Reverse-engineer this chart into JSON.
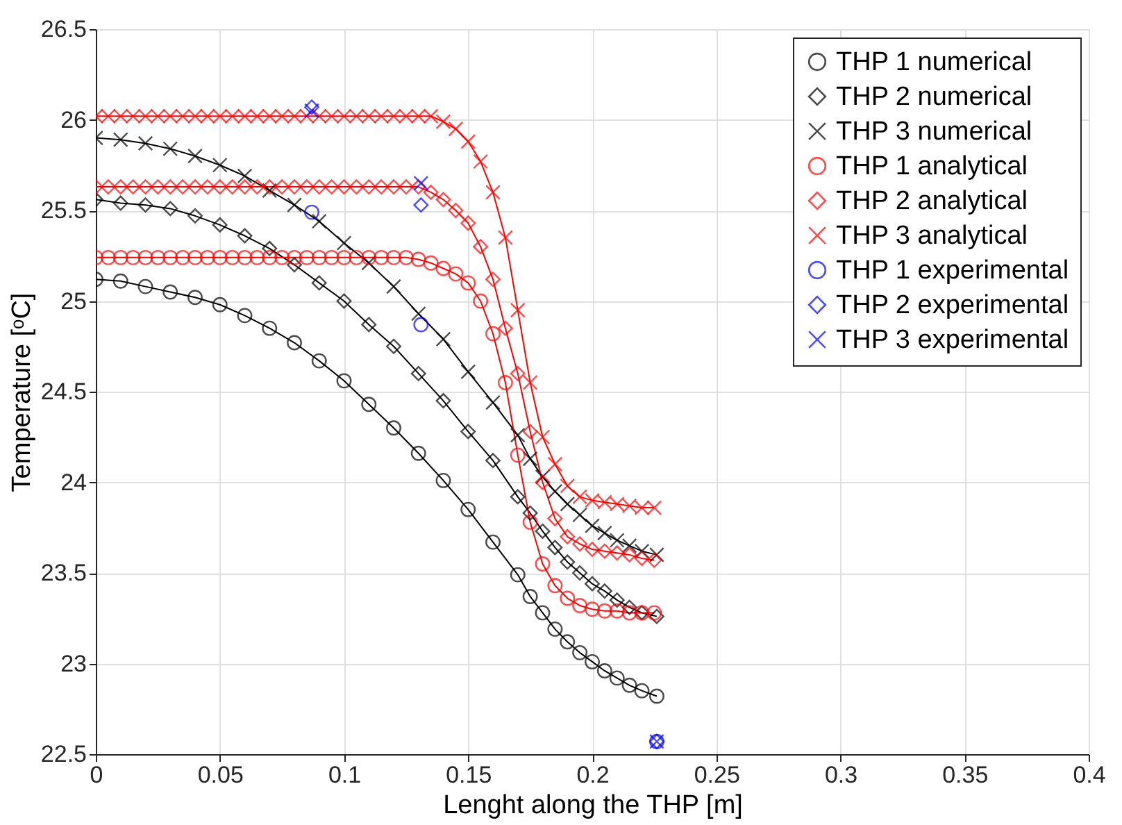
{
  "chart_data": {
    "type": "line",
    "xlabel": "Lenght along the THP [m]",
    "ylabel": "Temperature [ᵒC]",
    "xlim": [
      0,
      0.4
    ],
    "xticks": [
      0,
      0.05,
      0.1,
      0.15,
      0.2,
      0.25,
      0.3,
      0.35,
      0.4
    ],
    "ylim": [
      22.5,
      26.5
    ],
    "yticks": [
      22.5,
      23,
      23.5,
      24,
      24.5,
      25,
      25.5,
      26,
      26.5
    ],
    "grid": true,
    "legend": "top right",
    "series": [
      {
        "name": "THP 1 numerical",
        "type": "line",
        "marker": "circle",
        "color": "#000000",
        "x": [
          0,
          0.01,
          0.02,
          0.03,
          0.04,
          0.05,
          0.06,
          0.07,
          0.08,
          0.09,
          0.1,
          0.11,
          0.12,
          0.13,
          0.14,
          0.15,
          0.16,
          0.17,
          0.175,
          0.18,
          0.185,
          0.19,
          0.195,
          0.2,
          0.205,
          0.21,
          0.215,
          0.22,
          0.226
        ],
        "values": [
          25.12,
          25.11,
          25.08,
          25.05,
          25.02,
          24.98,
          24.92,
          24.85,
          24.77,
          24.67,
          24.56,
          24.43,
          24.3,
          24.16,
          24.01,
          23.85,
          23.67,
          23.49,
          23.37,
          23.28,
          23.19,
          23.12,
          23.06,
          23.01,
          22.96,
          22.92,
          22.88,
          22.85,
          22.82
        ]
      },
      {
        "name": "THP 2 numerical",
        "type": "line",
        "marker": "diamond",
        "color": "#000000",
        "x": [
          0,
          0.01,
          0.02,
          0.03,
          0.04,
          0.05,
          0.06,
          0.07,
          0.08,
          0.09,
          0.1,
          0.11,
          0.12,
          0.13,
          0.14,
          0.15,
          0.16,
          0.17,
          0.175,
          0.18,
          0.185,
          0.19,
          0.195,
          0.2,
          0.205,
          0.21,
          0.215,
          0.22,
          0.226
        ],
        "values": [
          25.56,
          25.54,
          25.53,
          25.51,
          25.47,
          25.42,
          25.36,
          25.29,
          25.2,
          25.1,
          25.0,
          24.87,
          24.75,
          24.6,
          24.45,
          24.28,
          24.12,
          23.92,
          23.83,
          23.73,
          23.64,
          23.56,
          23.5,
          23.44,
          23.4,
          23.35,
          23.31,
          23.28,
          23.26
        ]
      },
      {
        "name": "THP 3 numerical",
        "type": "line",
        "marker": "cross",
        "color": "#000000",
        "x": [
          0,
          0.01,
          0.02,
          0.03,
          0.04,
          0.05,
          0.06,
          0.07,
          0.08,
          0.09,
          0.1,
          0.11,
          0.12,
          0.13,
          0.14,
          0.15,
          0.16,
          0.17,
          0.175,
          0.18,
          0.185,
          0.19,
          0.195,
          0.2,
          0.205,
          0.21,
          0.215,
          0.22,
          0.226
        ],
        "values": [
          25.9,
          25.89,
          25.87,
          25.84,
          25.8,
          25.75,
          25.69,
          25.61,
          25.53,
          25.44,
          25.32,
          25.21,
          25.08,
          24.93,
          24.79,
          24.61,
          24.44,
          24.26,
          24.13,
          24.03,
          23.95,
          23.88,
          23.82,
          23.76,
          23.72,
          23.68,
          23.65,
          23.62,
          23.6
        ]
      },
      {
        "name": "THP 1 analytical",
        "type": "line",
        "marker": "circle",
        "color": "#ff0000",
        "x": [
          0,
          0.005,
          0.01,
          0.015,
          0.02,
          0.025,
          0.03,
          0.035,
          0.04,
          0.045,
          0.05,
          0.055,
          0.06,
          0.065,
          0.07,
          0.075,
          0.08,
          0.085,
          0.09,
          0.095,
          0.1,
          0.105,
          0.11,
          0.115,
          0.12,
          0.125,
          0.13,
          0.135,
          0.14,
          0.145,
          0.15,
          0.155,
          0.16,
          0.165,
          0.17,
          0.175,
          0.18,
          0.185,
          0.19,
          0.195,
          0.2,
          0.205,
          0.21,
          0.215,
          0.22,
          0.225
        ],
        "values": [
          25.24,
          25.24,
          25.24,
          25.24,
          25.24,
          25.24,
          25.24,
          25.24,
          25.24,
          25.24,
          25.24,
          25.24,
          25.24,
          25.24,
          25.24,
          25.24,
          25.24,
          25.24,
          25.24,
          25.24,
          25.24,
          25.24,
          25.24,
          25.24,
          25.24,
          25.24,
          25.23,
          25.21,
          25.18,
          25.15,
          25.1,
          25.0,
          24.82,
          24.55,
          24.15,
          23.78,
          23.55,
          23.43,
          23.36,
          23.32,
          23.3,
          23.29,
          23.29,
          23.28,
          23.28,
          23.28
        ]
      },
      {
        "name": "THP 2 analytical",
        "type": "line",
        "marker": "diamond",
        "color": "#ff0000",
        "x": [
          0,
          0.005,
          0.01,
          0.015,
          0.02,
          0.025,
          0.03,
          0.035,
          0.04,
          0.045,
          0.05,
          0.055,
          0.06,
          0.065,
          0.07,
          0.075,
          0.08,
          0.085,
          0.09,
          0.095,
          0.1,
          0.105,
          0.11,
          0.115,
          0.12,
          0.125,
          0.13,
          0.135,
          0.14,
          0.145,
          0.15,
          0.155,
          0.16,
          0.165,
          0.17,
          0.175,
          0.18,
          0.185,
          0.19,
          0.195,
          0.2,
          0.205,
          0.21,
          0.215,
          0.22,
          0.225
        ],
        "values": [
          25.63,
          25.63,
          25.63,
          25.63,
          25.63,
          25.63,
          25.63,
          25.63,
          25.63,
          25.63,
          25.63,
          25.63,
          25.63,
          25.63,
          25.63,
          25.63,
          25.63,
          25.63,
          25.63,
          25.63,
          25.63,
          25.63,
          25.63,
          25.63,
          25.63,
          25.63,
          25.63,
          25.6,
          25.56,
          25.5,
          25.43,
          25.3,
          25.12,
          24.85,
          24.6,
          24.28,
          24.0,
          23.8,
          23.7,
          23.66,
          23.63,
          23.62,
          23.61,
          23.6,
          23.58,
          23.57
        ]
      },
      {
        "name": "THP 3 analytical",
        "type": "line",
        "marker": "cross",
        "color": "#ff0000",
        "x": [
          0,
          0.005,
          0.01,
          0.015,
          0.02,
          0.025,
          0.03,
          0.035,
          0.04,
          0.045,
          0.05,
          0.055,
          0.06,
          0.065,
          0.07,
          0.075,
          0.08,
          0.085,
          0.09,
          0.095,
          0.1,
          0.105,
          0.11,
          0.115,
          0.12,
          0.125,
          0.13,
          0.135,
          0.14,
          0.145,
          0.15,
          0.155,
          0.16,
          0.165,
          0.17,
          0.175,
          0.18,
          0.185,
          0.19,
          0.195,
          0.2,
          0.205,
          0.21,
          0.215,
          0.22,
          0.225
        ],
        "values": [
          26.02,
          26.02,
          26.02,
          26.02,
          26.02,
          26.02,
          26.02,
          26.02,
          26.02,
          26.02,
          26.02,
          26.02,
          26.02,
          26.02,
          26.02,
          26.02,
          26.02,
          26.02,
          26.02,
          26.02,
          26.02,
          26.02,
          26.02,
          26.02,
          26.02,
          26.02,
          26.02,
          26.02,
          25.99,
          25.95,
          25.88,
          25.77,
          25.6,
          25.35,
          24.95,
          24.55,
          24.25,
          24.1,
          23.98,
          23.92,
          23.9,
          23.89,
          23.88,
          23.87,
          23.86,
          23.86
        ]
      },
      {
        "name": "THP 1 experimental",
        "type": "scatter",
        "marker": "circle",
        "color": "#0000ff",
        "x": [
          0.087,
          0.131,
          0.226
        ],
        "values": [
          25.49,
          24.87,
          22.57
        ]
      },
      {
        "name": "THP 2 experimental",
        "type": "scatter",
        "marker": "diamond",
        "color": "#0000ff",
        "x": [
          0.087,
          0.131,
          0.226
        ],
        "values": [
          26.07,
          25.53,
          22.57
        ]
      },
      {
        "name": "THP 3 experimental",
        "type": "scatter",
        "marker": "cross",
        "color": "#0000ff",
        "x": [
          0.087,
          0.131,
          0.226
        ],
        "values": [
          26.05,
          25.65,
          22.57
        ]
      }
    ]
  }
}
